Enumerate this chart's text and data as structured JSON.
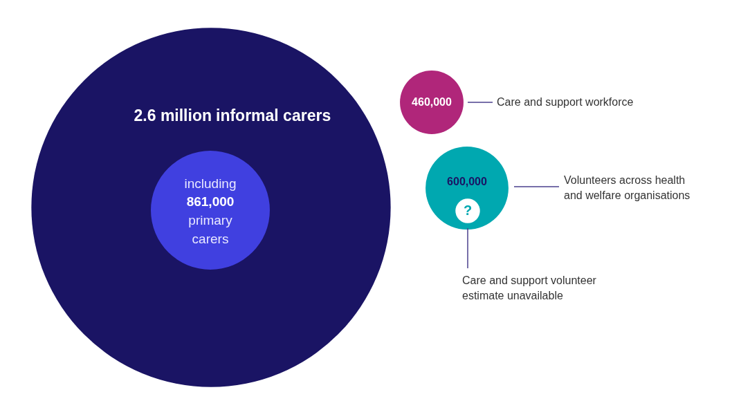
{
  "chart_data": {
    "type": "other",
    "categories": [
      "informal carers",
      "primary carers",
      "Care and support workforce",
      "Volunteers across health and welfare organisations"
    ],
    "values": [
      2600000,
      861000,
      460000,
      600000
    ],
    "value_labels": [
      "2.6 million",
      "861,000",
      "460,000",
      "600,000"
    ],
    "colors": [
      "#1a1464",
      "#4040e0",
      "#b0267a",
      "#00a8b0"
    ],
    "annotations": [
      "including",
      "Care and support volunteer estimate unavailable",
      "?"
    ]
  }
}
